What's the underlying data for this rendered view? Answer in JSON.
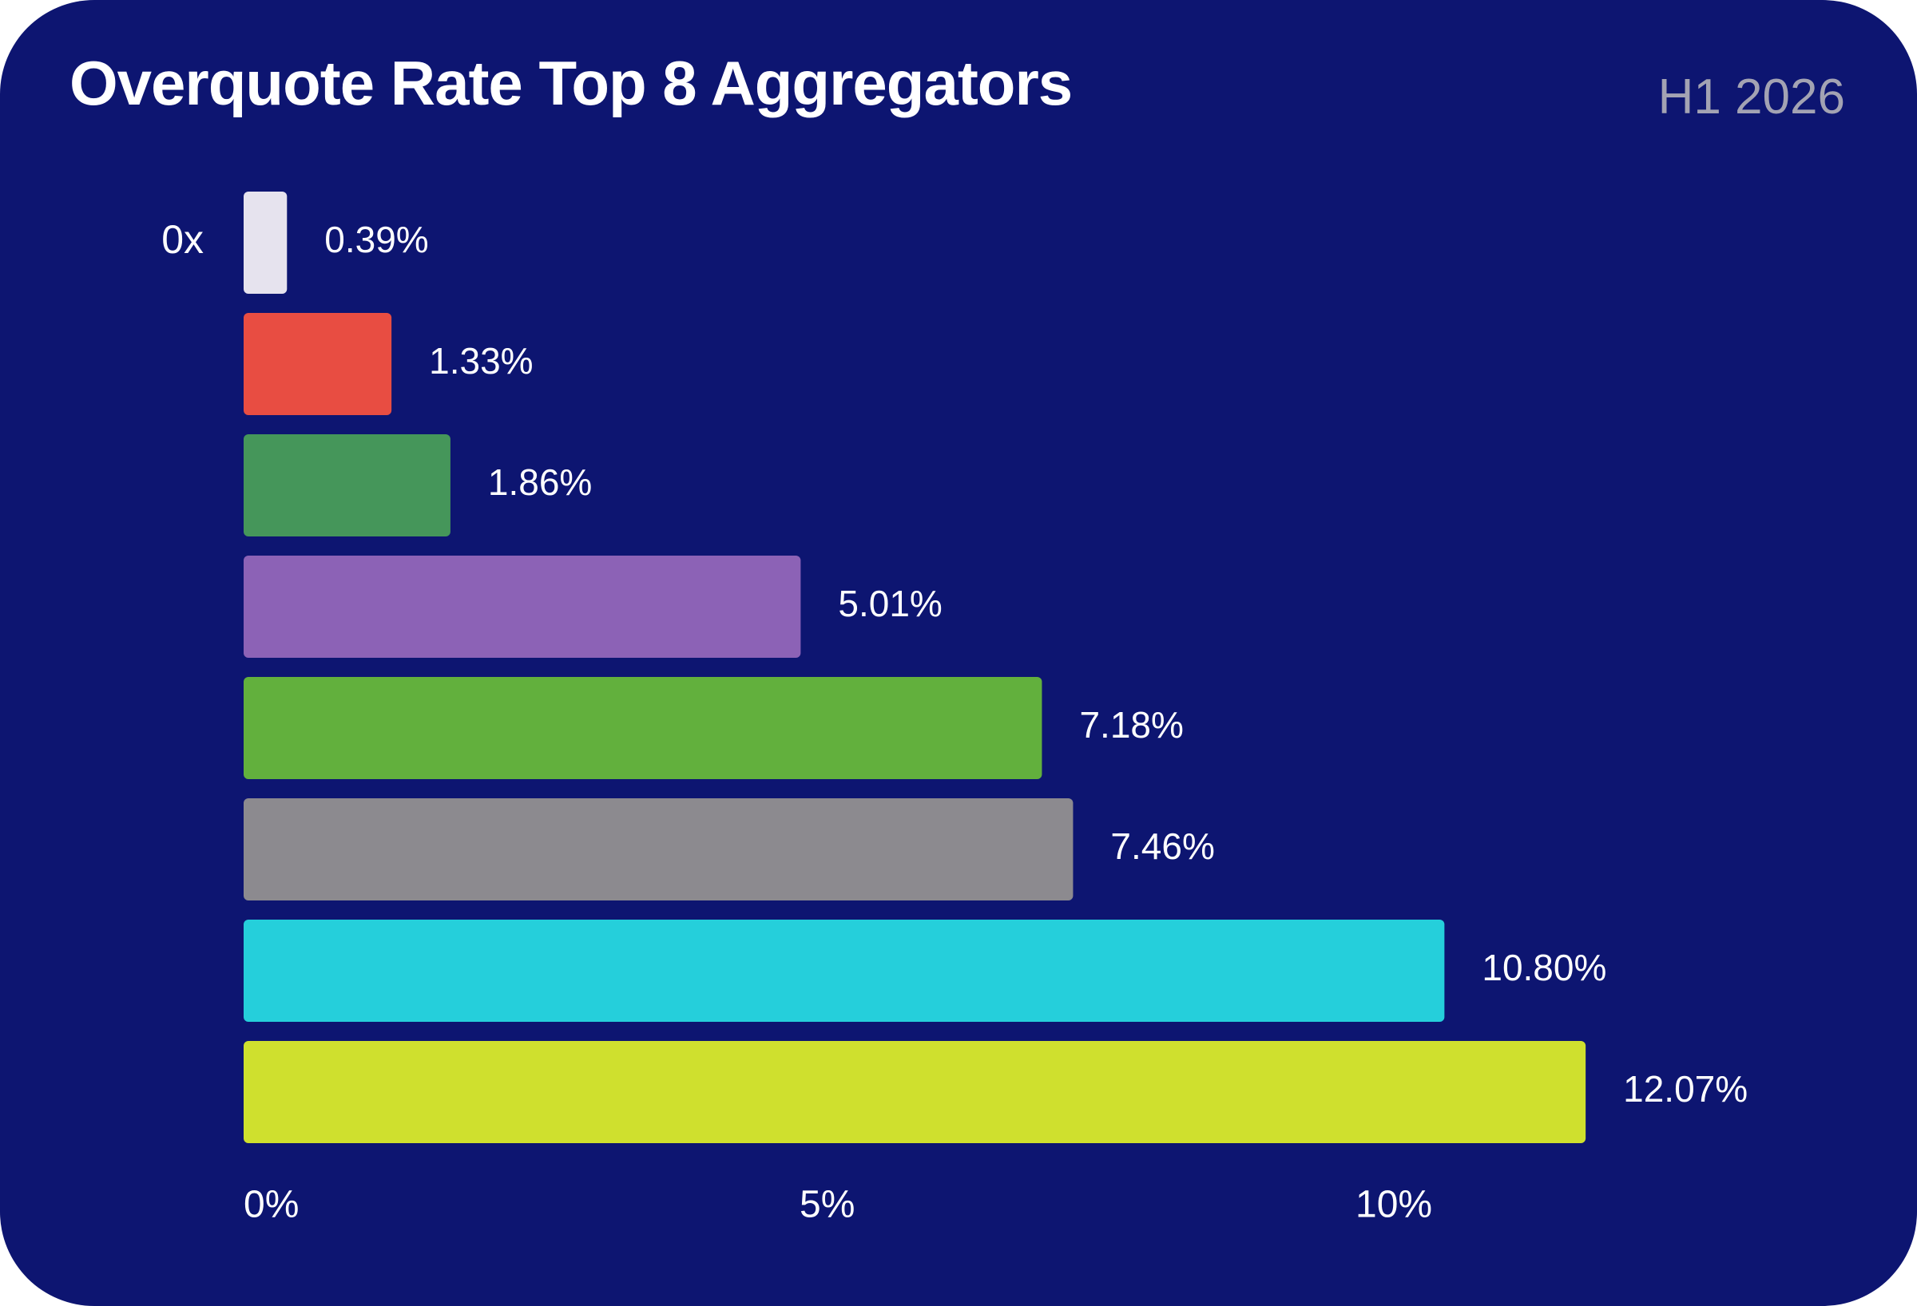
{
  "header": {
    "title": "Overquote Rate Top 8 Aggregators",
    "period": "H1 2026"
  },
  "chart_data": {
    "type": "bar",
    "orientation": "horizontal",
    "title": "Overquote Rate Top 8 Aggregators",
    "subtitle": "H1 2026",
    "categories": [
      "0x",
      "",
      "",
      "",
      "",
      "",
      "",
      ""
    ],
    "values": [
      0.39,
      1.33,
      1.86,
      5.01,
      7.18,
      7.46,
      10.8,
      12.07
    ],
    "value_labels": [
      "0.39%",
      "1.33%",
      "1.86%",
      "5.01%",
      "7.18%",
      "7.46%",
      "10.80%",
      "12.07%"
    ],
    "colors": [
      "#e6e3ee",
      "#e84d42",
      "#45965a",
      "#8c62b6",
      "#62b03d",
      "#8c8a8f",
      "#25cfdb",
      "#cfe02e"
    ],
    "xlim": [
      0,
      13
    ],
    "x_ticks": [
      0,
      5,
      10
    ],
    "x_tick_labels": [
      "0%",
      "5%",
      "10%"
    ],
    "xlabel": "",
    "ylabel": "",
    "grid": false,
    "legend": "none",
    "label_color": "#ffffff"
  }
}
